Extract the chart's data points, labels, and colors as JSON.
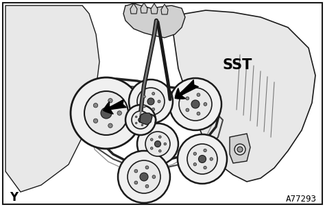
{
  "bg_color": "#ffffff",
  "border_color": "#111111",
  "label_Y": "Y",
  "label_code": "A77293",
  "label_SST": "SST",
  "fig_w": 4.74,
  "fig_h": 3.02,
  "dpi": 100,
  "font_size_Y": 12,
  "font_size_code": 10,
  "font_size_SST": 15,
  "line_color": "#1a1a1a",
  "fill_light": "#e8e8e8",
  "fill_mid": "#d0d0d0",
  "fill_dark": "#b0b0b0"
}
